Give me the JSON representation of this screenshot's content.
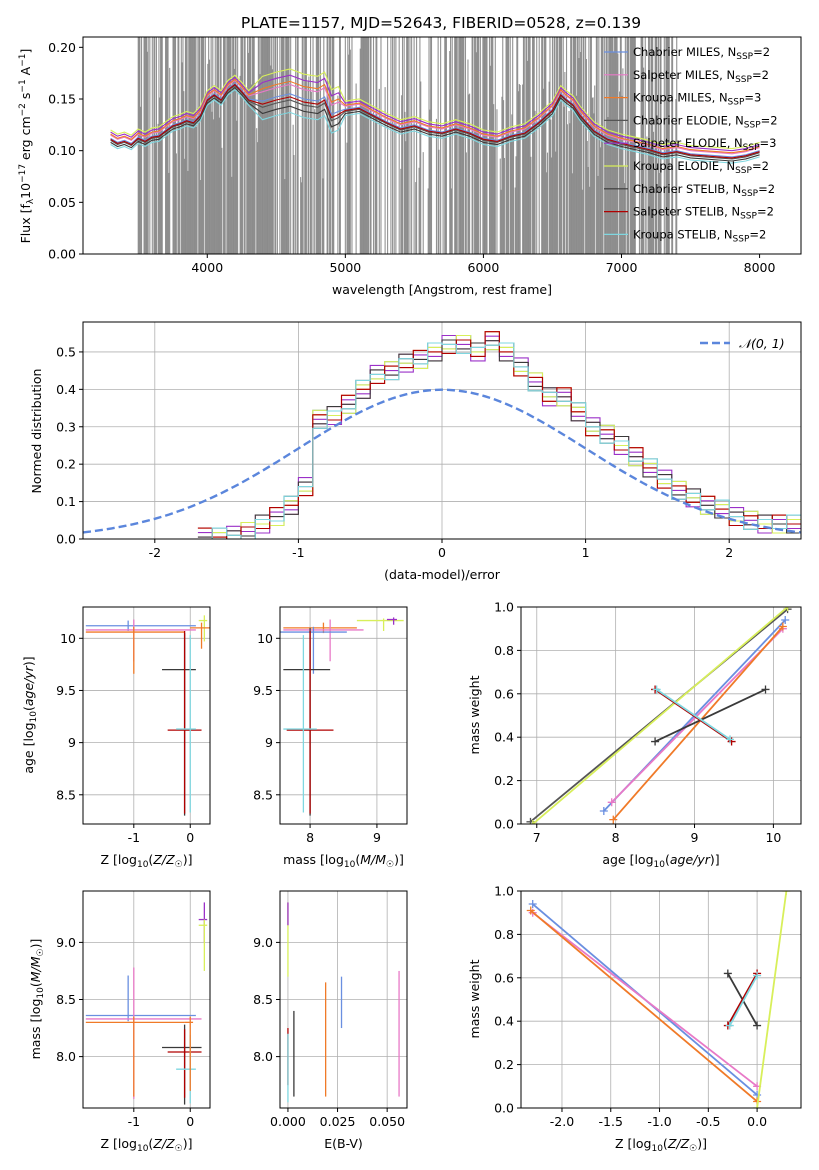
{
  "figure_title": "PLATE=1157, MJD=52643, FIBERID=0528, z=0.139",
  "chart_data": [
    {
      "id": "spectrum",
      "type": "line",
      "xlabel": "wavelength [Angstrom, rest frame]",
      "ylabel": "Flux [f_λ 10^-17 erg cm^-2 s^-1 A^-1]",
      "xlim": [
        3100,
        8300
      ],
      "ylim": [
        0,
        0.21
      ],
      "xticks": [
        4000,
        5000,
        6000,
        7000,
        8000
      ],
      "yticks": [
        0.0,
        0.05,
        0.1,
        0.15,
        0.2
      ],
      "grid": false,
      "legend_position": "top-right",
      "observed_noise_band": {
        "color": "#808080",
        "x_range": [
          3500,
          7400
        ]
      },
      "series": [
        {
          "name": "Chabrier MILES, N_SSP=2",
          "color": "#6a8fe0"
        },
        {
          "name": "Salpeter MILES, N_SSP=2",
          "color": "#e879c7"
        },
        {
          "name": "Kroupa MILES, N_SSP=3",
          "color": "#f07a28"
        },
        {
          "name": "Chabrier ELODIE, N_SSP=2",
          "color": "#555555"
        },
        {
          "name": "Salpeter ELODIE, N_SSP=3",
          "color": "#9b30c8"
        },
        {
          "name": "Kroupa ELODIE, N_SSP=2",
          "color": "#d8ef5a"
        },
        {
          "name": "Chabrier STELIB, N_SSP=2",
          "color": "#3a3a3a"
        },
        {
          "name": "Salpeter STELIB, N_SSP=2",
          "color": "#b00000"
        },
        {
          "name": "Kroupa STELIB, N_SSP=2",
          "color": "#7fd7e0"
        }
      ],
      "model_curve": {
        "x": [
          3300,
          3350,
          3400,
          3450,
          3500,
          3550,
          3600,
          3650,
          3700,
          3750,
          3800,
          3850,
          3900,
          3950,
          4000,
          4050,
          4100,
          4150,
          4200,
          4250,
          4300,
          4400,
          4500,
          4600,
          4700,
          4800,
          4850,
          4900,
          4950,
          5000,
          5100,
          5200,
          5300,
          5400,
          5500,
          5600,
          5700,
          5800,
          5900,
          6000,
          6100,
          6200,
          6300,
          6400,
          6500,
          6560,
          6600,
          6650,
          6700,
          6800,
          6900,
          7000,
          7100,
          7200,
          7300,
          7400,
          7500,
          7600,
          7700,
          7800,
          7900,
          8000
        ],
        "y": [
          0.112,
          0.108,
          0.11,
          0.107,
          0.113,
          0.11,
          0.114,
          0.115,
          0.12,
          0.125,
          0.127,
          0.13,
          0.128,
          0.135,
          0.15,
          0.155,
          0.15,
          0.16,
          0.165,
          0.158,
          0.15,
          0.148,
          0.152,
          0.155,
          0.15,
          0.148,
          0.152,
          0.135,
          0.138,
          0.14,
          0.142,
          0.135,
          0.128,
          0.122,
          0.125,
          0.12,
          0.118,
          0.122,
          0.118,
          0.112,
          0.11,
          0.115,
          0.118,
          0.128,
          0.14,
          0.155,
          0.15,
          0.145,
          0.135,
          0.12,
          0.112,
          0.108,
          0.105,
          0.102,
          0.098,
          0.1,
          0.097,
          0.096,
          0.095,
          0.094,
          0.096,
          0.1
        ]
      }
    },
    {
      "id": "residuals",
      "type": "line",
      "xlabel": "(data-model)/error",
      "ylabel": "Normed distribution",
      "xlim": [
        -2.5,
        2.5
      ],
      "ylim": [
        0,
        0.58
      ],
      "xticks": [
        -2,
        -1,
        0,
        1,
        2
      ],
      "yticks": [
        0.0,
        0.1,
        0.2,
        0.3,
        0.4,
        0.5
      ],
      "grid": true,
      "legend_position": "top-right",
      "reference_curve": {
        "name": "𝒩(0, 1)",
        "color": "#5b86dc",
        "style": "dashed",
        "mean": 0,
        "sigma": 1
      },
      "histogram_bins": [
        -1.7,
        -1.6,
        -1.5,
        -1.4,
        -1.3,
        -1.2,
        -1.1,
        -1.0,
        -0.9,
        -0.8,
        -0.7,
        -0.6,
        -0.5,
        -0.4,
        -0.3,
        -0.2,
        -0.1,
        0.0,
        0.1,
        0.2,
        0.3,
        0.4,
        0.5,
        0.6,
        0.7,
        0.8,
        0.9,
        1.0,
        1.1,
        1.2,
        1.3,
        1.4,
        1.5,
        1.6,
        1.7,
        1.8,
        1.9,
        2.0,
        2.1,
        2.2,
        2.3,
        2.4,
        2.5
      ],
      "histogram_heights": [
        0.005,
        0.005,
        0.01,
        0.02,
        0.04,
        0.06,
        0.09,
        0.14,
        0.32,
        0.33,
        0.36,
        0.4,
        0.44,
        0.45,
        0.47,
        0.48,
        0.5,
        0.52,
        0.52,
        0.5,
        0.53,
        0.5,
        0.46,
        0.42,
        0.38,
        0.38,
        0.34,
        0.3,
        0.28,
        0.25,
        0.22,
        0.19,
        0.16,
        0.13,
        0.11,
        0.09,
        0.08,
        0.06,
        0.05,
        0.04,
        0.04,
        0.04
      ]
    },
    {
      "id": "age-vs-Z",
      "type": "scatter",
      "xlabel": "Z [log10(Z/Z☉)]",
      "ylabel": "age  [log10(age/yr)]",
      "xlim": [
        -1.9,
        0.35
      ],
      "ylim": [
        8.22,
        10.3
      ],
      "xticks": [
        -1,
        0
      ],
      "yticks": [
        8.5,
        9.0,
        9.5,
        10.0
      ],
      "grid": true
    },
    {
      "id": "age-vs-mass",
      "type": "scatter",
      "xlabel": "mass [log10(M/M☉)]",
      "ylabel": "",
      "xlim": [
        7.55,
        9.45
      ],
      "ylim": [
        8.22,
        10.3
      ],
      "xticks": [
        8,
        9
      ],
      "yticks": [
        8.5,
        9.0,
        9.5,
        10.0
      ],
      "grid": true
    },
    {
      "id": "massweight-vs-age",
      "type": "line",
      "xlabel": "age  [log10(age/yr)]",
      "ylabel": "mass weight",
      "xlim": [
        6.8,
        10.35
      ],
      "ylim": [
        0,
        1
      ],
      "xticks": [
        7,
        8,
        9,
        10
      ],
      "yticks": [
        0.0,
        0.2,
        0.4,
        0.6,
        0.8,
        1.0
      ],
      "grid": true,
      "series": [
        {
          "name": "Chabrier MILES",
          "color": "#6a8fe0",
          "x": [
            7.85,
            10.15
          ],
          "y": [
            0.06,
            0.94
          ]
        },
        {
          "name": "Salpeter MILES",
          "color": "#e879c7",
          "x": [
            7.95,
            10.12
          ],
          "y": [
            0.1,
            0.9
          ]
        },
        {
          "name": "Kroupa MILES",
          "color": "#f07a28",
          "x": [
            7.97,
            10.12
          ],
          "y": [
            0.02,
            0.91
          ]
        },
        {
          "name": "Chabrier ELODIE",
          "color": "#555555",
          "x": [
            6.92,
            10.18
          ],
          "y": [
            0.01,
            0.99
          ]
        },
        {
          "name": "Kroupa ELODIE",
          "color": "#d8ef5a",
          "x": [
            6.95,
            10.18
          ],
          "y": [
            0.0,
            1.0
          ]
        },
        {
          "name": "Chabrier STELIB",
          "color": "#3a3a3a",
          "x": [
            8.5,
            9.9
          ],
          "y": [
            0.38,
            0.62
          ]
        },
        {
          "name": "Salpeter STELIB",
          "color": "#b00000",
          "x": [
            8.5,
            9.47
          ],
          "y": [
            0.62,
            0.38
          ]
        },
        {
          "name": "Kroupa STELIB",
          "color": "#7fd7e0",
          "x": [
            8.52,
            9.45
          ],
          "y": [
            0.62,
            0.39
          ]
        }
      ]
    },
    {
      "id": "mass-vs-Z",
      "type": "scatter",
      "xlabel": "Z [log10(Z/Z☉)]",
      "ylabel": "mass [log10(M/M☉)]",
      "xlim": [
        -1.9,
        0.35
      ],
      "ylim": [
        7.55,
        9.45
      ],
      "xticks": [
        -1,
        0
      ],
      "yticks": [
        8.0,
        8.5,
        9.0
      ],
      "grid": true
    },
    {
      "id": "mass-vs-EBV",
      "type": "scatter",
      "xlabel": "E(B-V)",
      "ylabel": "",
      "xlim": [
        -0.004,
        0.06
      ],
      "ylim": [
        7.55,
        9.45
      ],
      "xticks": [
        0.0,
        0.025,
        0.05
      ],
      "yticks": [
        8.0,
        8.5,
        9.0
      ],
      "grid": true
    },
    {
      "id": "massweight-vs-Z",
      "type": "line",
      "xlabel": "Z [log10(Z/Z☉)]",
      "ylabel": "mass weight",
      "xlim": [
        -2.42,
        0.45
      ],
      "ylim": [
        0,
        1
      ],
      "xticks": [
        -2.0,
        -1.5,
        -1.0,
        -0.5,
        0.0
      ],
      "yticks": [
        0.0,
        0.2,
        0.4,
        0.6,
        0.8,
        1.0
      ],
      "grid": true,
      "series": [
        {
          "name": "Chabrier MILES",
          "color": "#6a8fe0",
          "x": [
            -2.3,
            0.0
          ],
          "y": [
            0.94,
            0.06
          ]
        },
        {
          "name": "Salpeter MILES",
          "color": "#e879c7",
          "x": [
            -2.3,
            0.0
          ],
          "y": [
            0.9,
            0.1
          ]
        },
        {
          "name": "Kroupa MILES",
          "color": "#f07a28",
          "x": [
            -2.32,
            0.0
          ],
          "y": [
            0.91,
            0.03
          ]
        },
        {
          "name": "Kroupa ELODIE",
          "color": "#d8ef5a",
          "x": [
            0.0,
            0.3
          ],
          "y": [
            0.0,
            1.0
          ]
        },
        {
          "name": "Chabrier STELIB",
          "color": "#3a3a3a",
          "x": [
            -0.3,
            0.0
          ],
          "y": [
            0.62,
            0.38
          ]
        },
        {
          "name": "Salpeter STELIB",
          "color": "#b00000",
          "x": [
            -0.3,
            0.0
          ],
          "y": [
            0.38,
            0.62
          ]
        },
        {
          "name": "Kroupa STELIB",
          "color": "#7fd7e0",
          "x": [
            -0.28,
            0.0
          ],
          "y": [
            0.38,
            0.61
          ]
        }
      ]
    }
  ]
}
